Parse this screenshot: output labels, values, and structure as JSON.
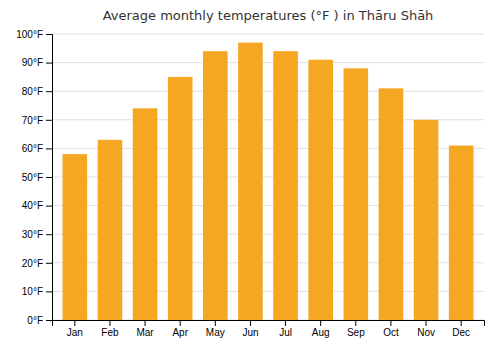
{
  "chart_data": {
    "type": "bar",
    "title": "Average monthly temperatures (°F ) in Thāru Shāh",
    "categories": [
      "Jan",
      "Feb",
      "Mar",
      "Apr",
      "May",
      "Jun",
      "Jul",
      "Aug",
      "Sep",
      "Oct",
      "Nov",
      "Dec"
    ],
    "values": [
      58,
      63,
      74,
      85,
      94,
      97,
      94,
      91,
      88,
      81,
      70,
      61
    ],
    "color": "#F5A623",
    "ylim": [
      0,
      100
    ],
    "yticks": [
      {
        "value": 0,
        "label": "0°F"
      },
      {
        "value": 10,
        "label": "10°F"
      },
      {
        "value": 20,
        "label": "20°F"
      },
      {
        "value": 30,
        "label": "30°F"
      },
      {
        "value": 40,
        "label": "40°F"
      },
      {
        "value": 50,
        "label": "50°F"
      },
      {
        "value": 60,
        "label": "60°F"
      },
      {
        "value": 70,
        "label": "70°F"
      },
      {
        "value": 80,
        "label": "80°F"
      },
      {
        "value": 90,
        "label": "90°F"
      },
      {
        "value": 100,
        "label": "100°F"
      }
    ],
    "grid": true
  }
}
